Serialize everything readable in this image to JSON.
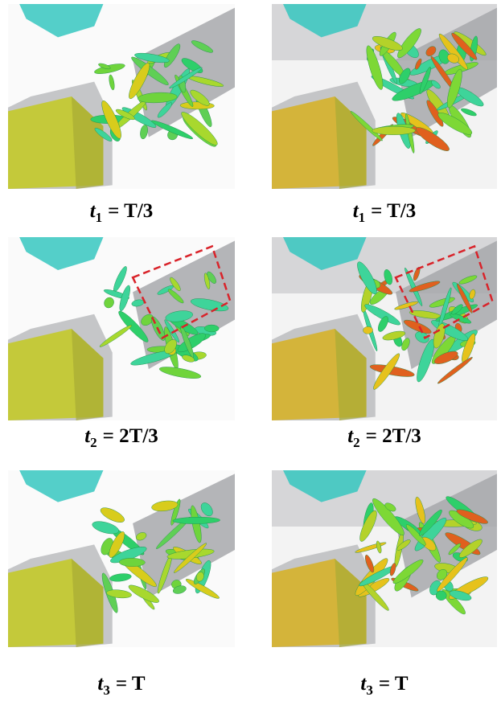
{
  "panels": [
    {
      "variable": "t",
      "subscript": "1",
      "expression": "= T/3"
    },
    {
      "variable": "t",
      "subscript": "1",
      "expression": "= T/3"
    },
    {
      "variable": "t",
      "subscript": "2",
      "expression": "= 2T/3"
    },
    {
      "variable": "t",
      "subscript": "2",
      "expression": "= 2T/3"
    },
    {
      "variable": "t",
      "subscript": "3",
      "expression": "= T"
    },
    {
      "variable": "t",
      "subscript": "3",
      "expression": "= T"
    }
  ]
}
